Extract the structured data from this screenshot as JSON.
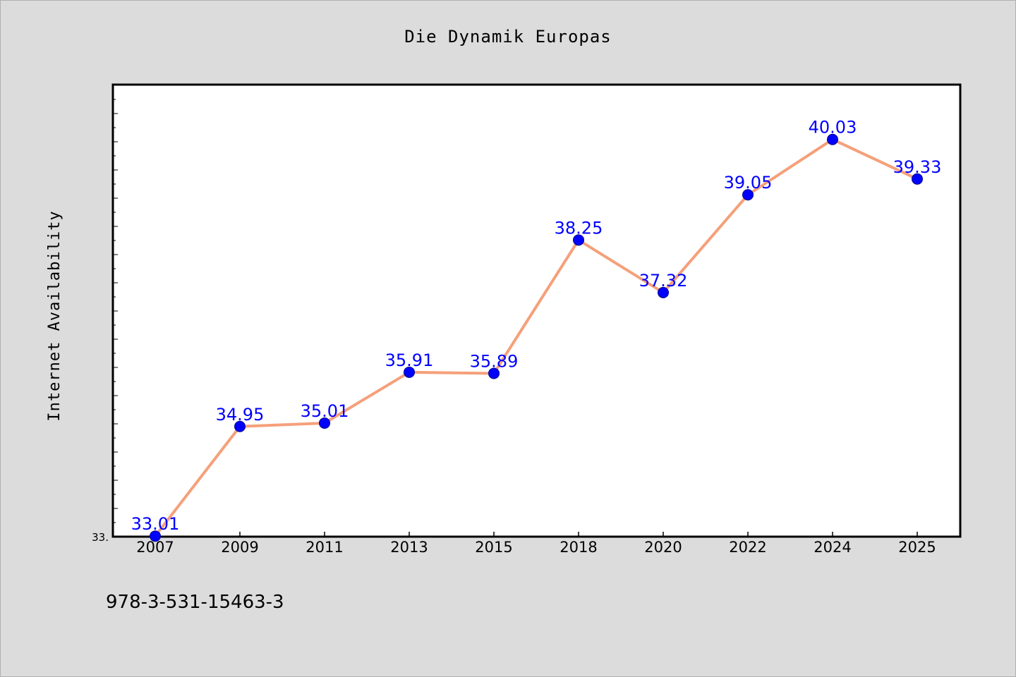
{
  "chart_data": {
    "type": "line",
    "title": "Die Dynamik Europas",
    "xlabel": "",
    "ylabel": "Internet Availability",
    "categories": [
      "2007",
      "2009",
      "2011",
      "2013",
      "2015",
      "2018",
      "2020",
      "2022",
      "2024",
      "2025"
    ],
    "series": [
      {
        "values": [
          33.01,
          34.95,
          35.01,
          35.91,
          35.89,
          38.25,
          37.32,
          39.05,
          40.03,
          39.33
        ],
        "labels": [
          "33.01",
          "34.95",
          "35.01",
          "35.91",
          "35.89",
          "38.25",
          "37.32",
          "39.05",
          "40.03",
          "39.33"
        ],
        "line_color": "#f5a07a",
        "marker_color": "#0000ff"
      }
    ],
    "ylim": [
      33.0,
      41.0
    ],
    "y_tick_label": "33.",
    "grid": false,
    "legend": "none"
  },
  "footer": {
    "isbn": "978-3-531-15463-3"
  },
  "colors": {
    "background": "#dcdcdc",
    "plot_background": "#ffffff",
    "line": "#f5a07a",
    "marker": "#0000ff",
    "label": "#0000ff"
  }
}
